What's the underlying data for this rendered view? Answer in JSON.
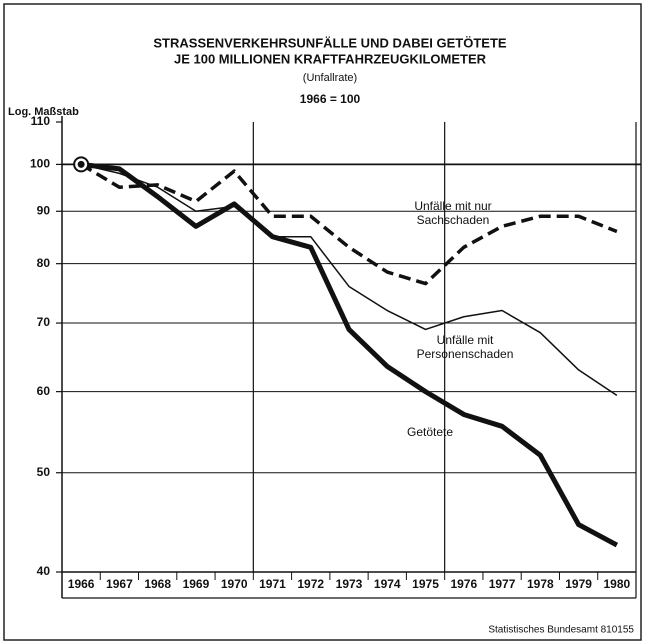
{
  "chart_data": {
    "type": "line",
    "title": [
      "STRASSENVERKEHRSUNFÄLLE UND DABEI GETÖTETE",
      "JE 100 MILLIONEN KRAFTFAHRZEUGKILOMETER"
    ],
    "subtitle": "(Unfallrate)",
    "base_note": "1966 = 100",
    "y_label": "Log. Maßstab",
    "source": "Statistisches Bundesamt 810155",
    "log_scale": true,
    "grid": true,
    "categories": [
      "1966",
      "1967",
      "1968",
      "1969",
      "1970",
      "1971",
      "1972",
      "1973",
      "1974",
      "1975",
      "1976",
      "1977",
      "1978",
      "1979",
      "1980"
    ],
    "series": [
      {
        "name": "Getötete",
        "color": "#111111",
        "linestyle": "solid",
        "values": [
          100,
          99,
          93,
          87,
          91.5,
          85,
          83,
          69,
          63.5,
          60,
          57,
          55.5,
          52,
          44.5,
          42.5
        ]
      },
      {
        "name": "Unfälle mit Personenschaden",
        "color": "#111111",
        "linestyle": "solid",
        "values": [
          100,
          98,
          95,
          90,
          91,
          85,
          85,
          76,
          72,
          69,
          71,
          72,
          68.5,
          63,
          59.5
        ]
      },
      {
        "name": "Unfälle mit nur Sachschaden",
        "color": "#111111",
        "linestyle": "dashed",
        "values": [
          100,
          95,
          95.5,
          92,
          98.5,
          89,
          89,
          83,
          78.5,
          76.5,
          83,
          87,
          89,
          89,
          86
        ]
      }
    ],
    "ylim": [
      40,
      110
    ],
    "yticks": [
      40,
      50,
      60,
      70,
      80,
      90,
      100,
      110
    ]
  }
}
